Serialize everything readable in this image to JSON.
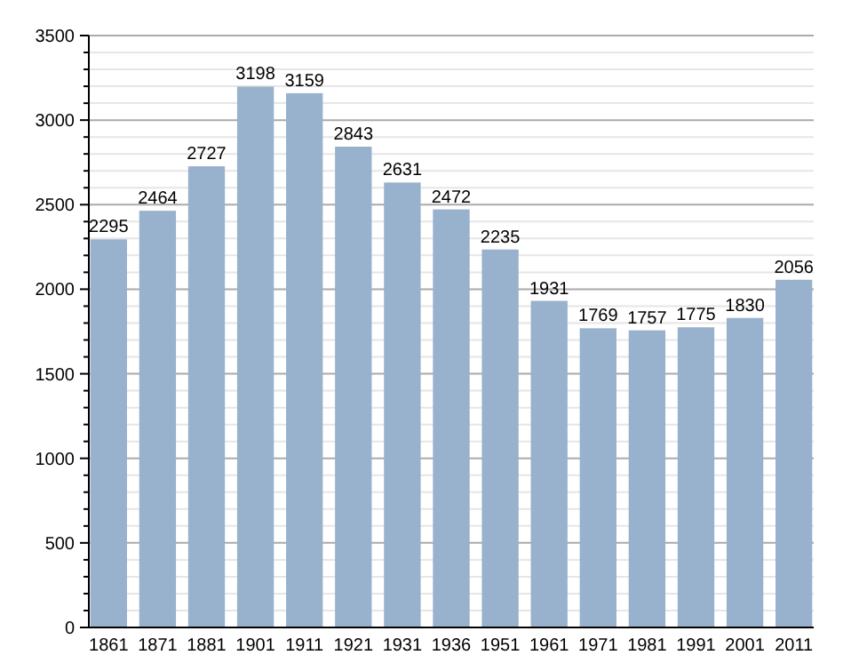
{
  "chart_data": {
    "type": "bar",
    "categories": [
      "1861",
      "1871",
      "1881",
      "1901",
      "1911",
      "1921",
      "1931",
      "1936",
      "1951",
      "1961",
      "1971",
      "1981",
      "1991",
      "2001",
      "2011"
    ],
    "values": [
      2295,
      2464,
      2727,
      3198,
      3159,
      2843,
      2631,
      2472,
      2235,
      1931,
      1769,
      1757,
      1775,
      1830,
      2056
    ],
    "color": "#98b1cc",
    "data_labels": true,
    "grid": "y",
    "ylim": [
      0,
      3500
    ],
    "yticks": [
      0,
      {
        "value": 100,
        "label": null
      },
      {
        "value": 200,
        "label": null
      },
      {
        "value": 300,
        "label": null
      },
      {
        "value": 400,
        "label": null
      },
      500,
      {
        "value": 600,
        "label": null
      },
      {
        "value": 700,
        "label": null
      },
      {
        "value": 800,
        "label": null
      },
      {
        "value": 900,
        "label": null
      },
      1000,
      {
        "value": 1100,
        "label": null
      },
      {
        "value": 1200,
        "label": null
      },
      {
        "value": 1300,
        "label": null
      },
      {
        "value": 1400,
        "label": null
      },
      1500,
      {
        "value": 1600,
        "label": null
      },
      {
        "value": 1700,
        "label": null
      },
      {
        "value": 1800,
        "label": null
      },
      {
        "value": 1900,
        "label": null
      },
      2000,
      {
        "value": 2100,
        "label": null
      },
      {
        "value": 2200,
        "label": null
      },
      {
        "value": 2300,
        "label": null
      },
      {
        "value": 2400,
        "label": null
      },
      2500,
      {
        "value": 2600,
        "label": null
      },
      {
        "value": 2700,
        "label": null
      },
      {
        "value": 2800,
        "label": null
      },
      {
        "value": 2900,
        "label": null
      },
      3000,
      {
        "value": 3100,
        "label": null
      },
      {
        "value": 3200,
        "label": null
      },
      {
        "value": 3300,
        "label": null
      },
      {
        "value": 3400,
        "label": null
      },
      3500
    ]
  }
}
